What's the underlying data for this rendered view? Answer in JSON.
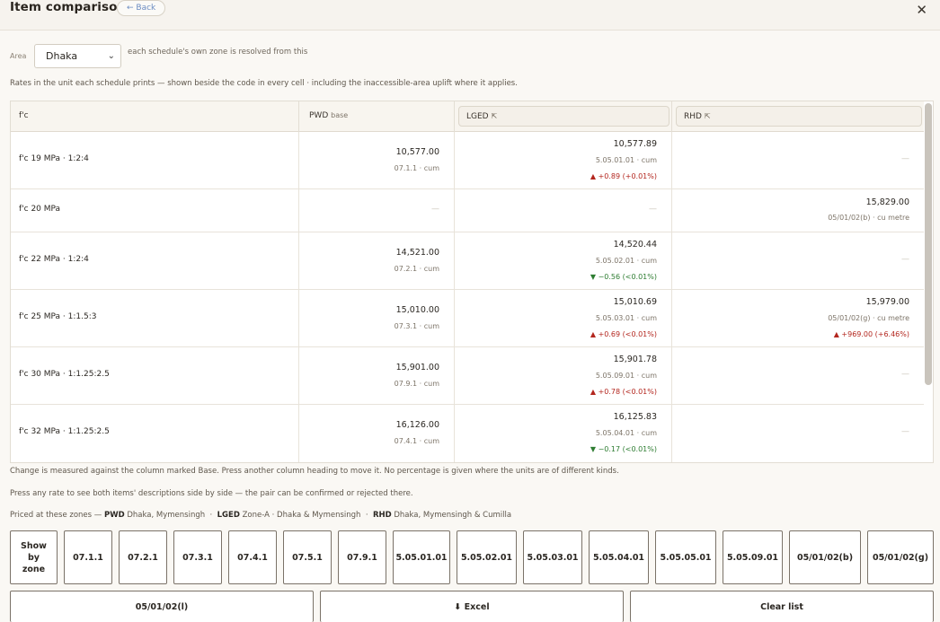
{
  "window": {
    "title": "Item comparison",
    "back_label": "← Back",
    "close_label": "✕"
  },
  "area": {
    "label": "Area",
    "selected": "Dhaka",
    "hint": "each schedule's own zone is resolved from this"
  },
  "rates_note": "Rates in the unit each schedule prints — shown beside the code in every cell · including the inaccessible-area uplift where it applies.",
  "table": {
    "headers": {
      "item": "f'c",
      "pwd": "PWD",
      "pwd_base": "base",
      "lged": "LGED",
      "lged_arrow": "⇱",
      "rhd": "RHD",
      "rhd_arrow": "⇱"
    },
    "rows": [
      {
        "label": "f'c 19 MPa · 1:2:4",
        "pwd": {
          "value": "10,577.00",
          "code": "07.1.1 · cum"
        },
        "lged": {
          "value": "10,577.89",
          "code": "5.05.01.01 · cum",
          "change": "▲ +0.89 (+0.01%)",
          "dir": "up"
        },
        "rhd": {
          "dash": "—"
        }
      },
      {
        "label": "f'c 20 MPa",
        "pwd": {
          "dash": "—"
        },
        "lged": {
          "dash": "—"
        },
        "rhd": {
          "value": "15,829.00",
          "code": "05/01/02(b) · cu metre"
        }
      },
      {
        "label": "f'c 22 MPa · 1:2:4",
        "pwd": {
          "value": "14,521.00",
          "code": "07.2.1 · cum"
        },
        "lged": {
          "value": "14,520.44",
          "code": "5.05.02.01 · cum",
          "change": "▼ −0.56 (<0.01%)",
          "dir": "down"
        },
        "rhd": {
          "dash": "—"
        }
      },
      {
        "label": "f'c 25 MPa · 1:1.5:3",
        "pwd": {
          "value": "15,010.00",
          "code": "07.3.1 · cum"
        },
        "lged": {
          "value": "15,010.69",
          "code": "5.05.03.01 · cum",
          "change": "▲ +0.69 (<0.01%)",
          "dir": "up"
        },
        "rhd": {
          "value": "15,979.00",
          "code": "05/01/02(g) · cu metre",
          "change": "▲ +969.00 (+6.46%)",
          "dir": "up"
        }
      },
      {
        "label": "f'c 30 MPa · 1:1.25:2.5",
        "pwd": {
          "value": "15,901.00",
          "code": "07.9.1 · cum"
        },
        "lged": {
          "value": "15,901.78",
          "code": "5.05.09.01 · cum",
          "change": "▲ +0.78 (<0.01%)",
          "dir": "up"
        },
        "rhd": {
          "dash": "—"
        }
      },
      {
        "label": "f'c 32 MPa · 1:1.25:2.5",
        "pwd": {
          "value": "16,126.00",
          "code": "07.4.1 · cum"
        },
        "lged": {
          "value": "16,125.83",
          "code": "5.05.04.01 · cum",
          "change": "▼ −0.17 (<0.01%)",
          "dir": "down"
        },
        "rhd": {
          "dash": "—"
        }
      }
    ]
  },
  "notes": {
    "change": "Change is measured against the column marked Base. Press another column heading to move it. No percentage is given where the units are of different kinds.",
    "press": "Press any rate to see both items' descriptions side by side — the pair can be confirmed or rejected there.",
    "zones_prefix": "Priced at these zones —",
    "pwd_label": "PWD",
    "pwd_zones": "Dhaka, Mymensingh",
    "lged_label": "LGED",
    "lged_zones": "Zone-A · Dhaka & Mymensingh",
    "rhd_label": "RHD",
    "rhd_zones": "Dhaka, Mymensingh & Cumilla",
    "sep": "·"
  },
  "buttons": {
    "show_by_zone_line1": "Show",
    "show_by_zone_line2": "by",
    "show_by_zone_line3": "zone",
    "codes": [
      "07.1.1",
      "07.2.1",
      "07.3.1",
      "07.4.1",
      "07.5.1",
      "07.9.1",
      "5.05.01.01",
      "5.05.02.01",
      "5.05.03.01",
      "5.05.04.01",
      "5.05.05.01",
      "5.05.09.01",
      "05/01/02(b)",
      "05/01/02(g)"
    ],
    "last_code": "05/01/02(l)",
    "excel": "⬇ Excel",
    "clear": "Clear list"
  }
}
